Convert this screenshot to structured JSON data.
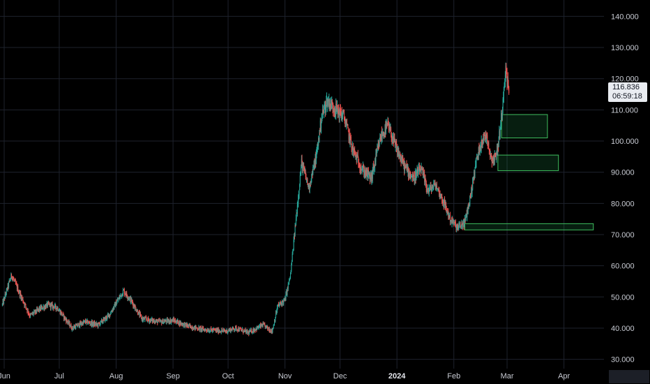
{
  "chart_data": {
    "type": "candlestick",
    "title": "",
    "ylim": [
      27000,
      143000
    ],
    "y_ticks": [
      "30.000",
      "40.000",
      "50.000",
      "60.000",
      "70.000",
      "80.000",
      "90.000",
      "100.000",
      "110.000",
      "120.000",
      "130.000",
      "140.000"
    ],
    "y_tick_values": [
      30000,
      40000,
      50000,
      60000,
      70000,
      80000,
      90000,
      100000,
      110000,
      120000,
      130000,
      140000
    ],
    "x_ticks": [
      {
        "label": "Jun",
        "date": "2023-06-01",
        "bold": false
      },
      {
        "label": "Jul",
        "date": "2023-07-01",
        "bold": false
      },
      {
        "label": "Aug",
        "date": "2023-08-01",
        "bold": false
      },
      {
        "label": "Sep",
        "date": "2023-09-01",
        "bold": false
      },
      {
        "label": "Oct",
        "date": "2023-10-01",
        "bold": false
      },
      {
        "label": "Nov",
        "date": "2023-11-01",
        "bold": false
      },
      {
        "label": "Dec",
        "date": "2023-12-01",
        "bold": false
      },
      {
        "label": "2024",
        "date": "2024-01-01",
        "bold": true
      },
      {
        "label": "Feb",
        "date": "2024-02-01",
        "bold": false
      },
      {
        "label": "Mar",
        "date": "2024-03-01",
        "bold": false
      },
      {
        "label": "Apr",
        "date": "2024-04-01",
        "bold": false
      }
    ],
    "xlim": [
      "2023-06-01",
      "2024-04-19"
    ],
    "grid": true,
    "colors": {
      "up": "#26a69a",
      "down": "#ef5350",
      "grid": "#1e222d",
      "zone_fill": "rgba(38,166,91,0.18)",
      "zone_stroke": "#3fbf5f"
    },
    "close_path": [
      [
        "2023-05-31",
        47500
      ],
      [
        "2023-06-05",
        57000
      ],
      [
        "2023-06-08",
        53000
      ],
      [
        "2023-06-15",
        44000
      ],
      [
        "2023-06-20",
        46000
      ],
      [
        "2023-06-25",
        47500
      ],
      [
        "2023-06-30",
        46500
      ],
      [
        "2023-07-03",
        44000
      ],
      [
        "2023-07-08",
        40000
      ],
      [
        "2023-07-15",
        42000
      ],
      [
        "2023-07-22",
        41000
      ],
      [
        "2023-07-28",
        44000
      ],
      [
        "2023-08-05",
        52000
      ],
      [
        "2023-08-09",
        49000
      ],
      [
        "2023-08-15",
        43000
      ],
      [
        "2023-08-25",
        42000
      ],
      [
        "2023-09-01",
        42500
      ],
      [
        "2023-09-10",
        40500
      ],
      [
        "2023-09-18",
        39500
      ],
      [
        "2023-09-30",
        39000
      ],
      [
        "2023-10-05",
        40000
      ],
      [
        "2023-10-12",
        38500
      ],
      [
        "2023-10-20",
        41000
      ],
      [
        "2023-10-25",
        39000
      ],
      [
        "2023-10-28",
        47000
      ],
      [
        "2023-11-01",
        49000
      ],
      [
        "2023-11-04",
        57000
      ],
      [
        "2023-11-07",
        75000
      ],
      [
        "2023-11-10",
        93000
      ],
      [
        "2023-11-14",
        85000
      ],
      [
        "2023-11-18",
        95000
      ],
      [
        "2023-11-21",
        108000
      ],
      [
        "2023-11-24",
        113000
      ],
      [
        "2023-11-29",
        110000
      ],
      [
        "2023-12-03",
        108000
      ],
      [
        "2023-12-08",
        97000
      ],
      [
        "2023-12-13",
        91000
      ],
      [
        "2023-12-18",
        88000
      ],
      [
        "2023-12-23",
        101000
      ],
      [
        "2023-12-27",
        105000
      ],
      [
        "2024-01-01",
        97000
      ],
      [
        "2024-01-05",
        92000
      ],
      [
        "2024-01-10",
        88000
      ],
      [
        "2024-01-14",
        91000
      ],
      [
        "2024-01-18",
        84000
      ],
      [
        "2024-01-22",
        86000
      ],
      [
        "2024-01-26",
        81000
      ],
      [
        "2024-01-30",
        75000
      ],
      [
        "2024-02-03",
        72000
      ],
      [
        "2024-02-07",
        74000
      ],
      [
        "2024-02-10",
        82000
      ],
      [
        "2024-02-13",
        93000
      ],
      [
        "2024-02-16",
        100000
      ],
      [
        "2024-02-19",
        102000
      ],
      [
        "2024-02-21",
        95000
      ],
      [
        "2024-02-23",
        94000
      ],
      [
        "2024-02-25",
        98000
      ],
      [
        "2024-02-27",
        108000
      ],
      [
        "2024-02-29",
        123000
      ],
      [
        "2024-03-02",
        116836
      ]
    ],
    "last_price": "116.836",
    "countdown": "06:59:18",
    "zones": [
      {
        "from_date": "2024-02-27",
        "to_date": "2024-03-23",
        "low": 101000,
        "high": 108500
      },
      {
        "from_date": "2024-02-25",
        "to_date": "2024-03-29",
        "low": 90500,
        "high": 95500
      },
      {
        "from_date": "2024-02-07",
        "to_date": "2024-04-17",
        "low": 71500,
        "high": 73500
      }
    ]
  },
  "icons": {
    "corner": "corner-placeholder"
  }
}
